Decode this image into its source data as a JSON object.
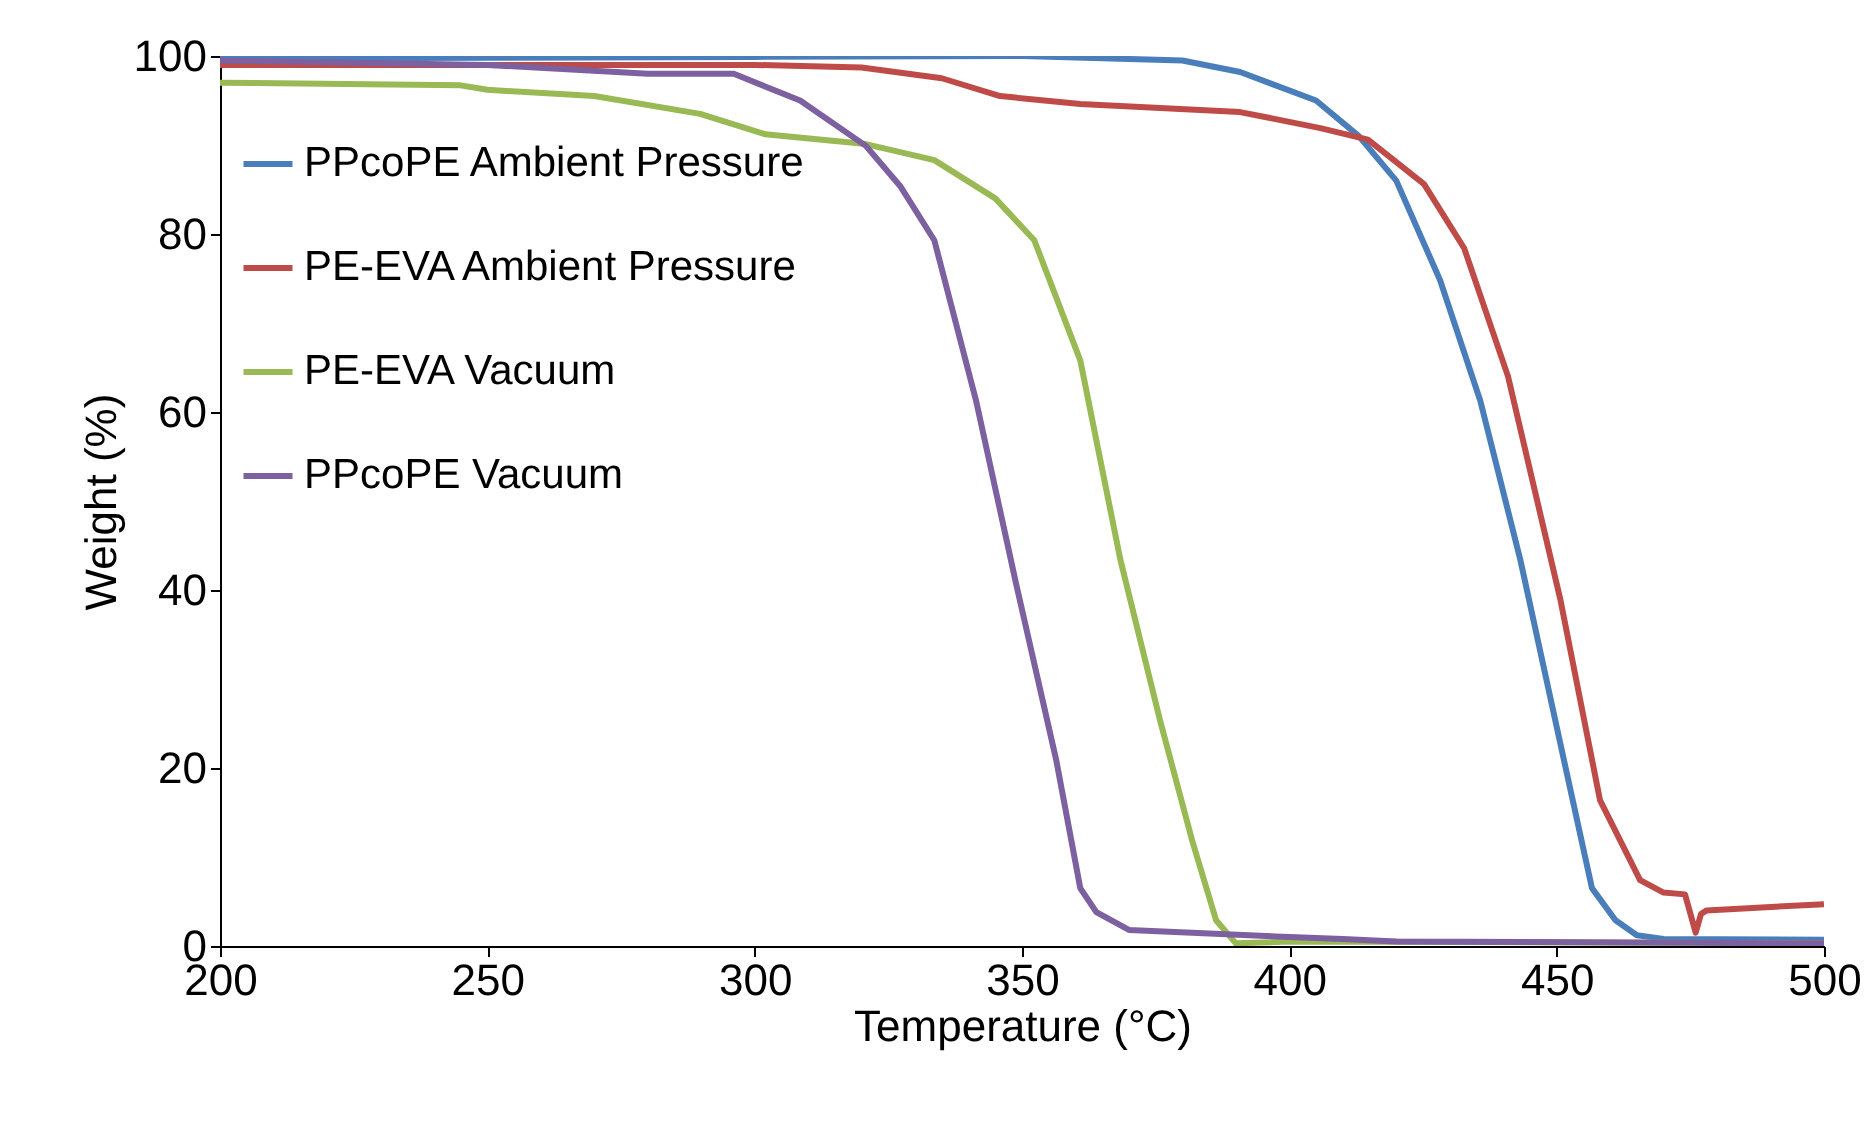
{
  "chart_data": {
    "type": "line",
    "xlabel": "Temperature (°C)",
    "ylabel": "Weight (%)",
    "xlim": [
      200,
      500
    ],
    "xticks": [
      200,
      250,
      300,
      350,
      400,
      450,
      500
    ],
    "ylim": [
      0,
      100
    ],
    "yticks": [
      0,
      20,
      40,
      60,
      80,
      100
    ],
    "grid": false,
    "legend": "top left",
    "marker": "none",
    "line_style": "solid",
    "series": [
      {
        "name": "PPcoPE Ambient Pressure",
        "color": "#4a7ebb",
        "x": [
          200,
          250,
          300,
          350,
          380,
          390.8,
          405,
          413,
          420,
          428.2,
          435.7,
          443.2,
          450.7,
          456.6,
          461,
          465,
          470,
          500
        ],
        "values": [
          99.7,
          99.8,
          99.9,
          100,
          99.5,
          98.2,
          95,
          91,
          86,
          74.8,
          61.3,
          43.4,
          22.7,
          6.5,
          2.9,
          1.2,
          0.8,
          0.7
        ]
      },
      {
        "name": "PE-EVA Ambient Pressure",
        "color": "#be4b48",
        "x": [
          200,
          250,
          300,
          320,
          335,
          345.9,
          360.9,
          390.8,
          405.8,
          414.7,
          425.2,
          432.7,
          440.9,
          450.7,
          458.1,
          465.6,
          470,
          474,
          476,
          477,
          478,
          500
        ],
        "values": [
          99,
          99,
          99,
          98.7,
          97.5,
          95.5,
          94.6,
          93.7,
          91.9,
          90.6,
          85.6,
          78.4,
          64,
          38.9,
          16.4,
          7.4,
          6,
          5.8,
          1.5,
          3.6,
          4,
          4.7
        ]
      },
      {
        "name": "PE-EVA Vacuum",
        "color": "#98b954",
        "x": [
          200,
          245,
          250,
          270,
          289.8,
          302,
          320.8,
          333.6,
          345,
          352.3,
          360.9,
          368.4,
          375.8,
          381.8,
          386.3,
          390,
          400,
          500
        ],
        "values": [
          97,
          96.7,
          96.2,
          95.5,
          93.5,
          91.2,
          90.1,
          88.3,
          84,
          79.3,
          65.8,
          43.4,
          25.4,
          11.9,
          2.9,
          0.3,
          0.5,
          0.3
        ]
      },
      {
        "name": "PPcoPE Vacuum",
        "color": "#7d60a0",
        "x": [
          200,
          250,
          280,
          296.1,
          308.5,
          320.8,
          327.2,
          333.6,
          341.4,
          348.9,
          356.4,
          360.9,
          363.9,
          370,
          400,
          410,
          420,
          500
        ],
        "values": [
          99.5,
          99,
          98,
          98,
          95,
          89.9,
          85.4,
          79.3,
          61.3,
          40.7,
          20.9,
          6.5,
          3.8,
          1.8,
          1,
          0.8,
          0.5,
          0.3
        ]
      }
    ]
  }
}
